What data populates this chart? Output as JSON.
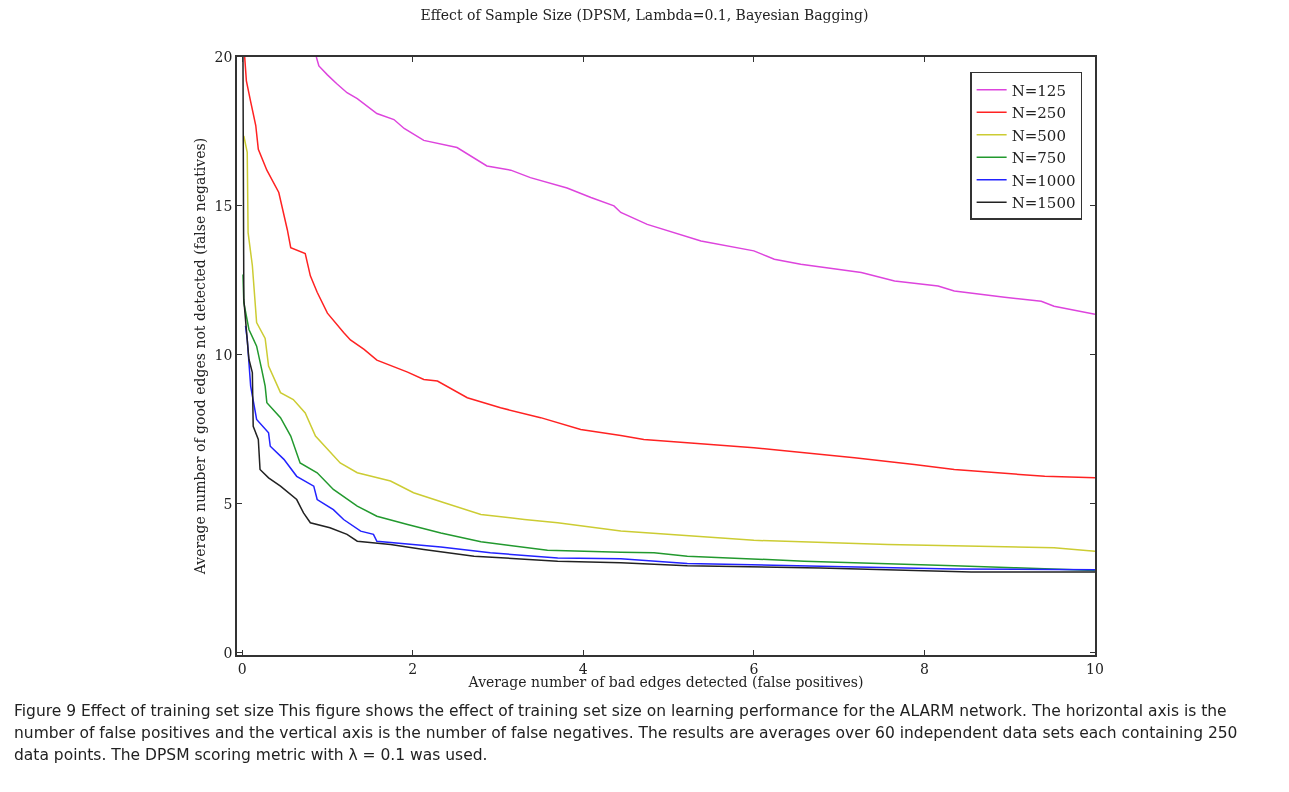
{
  "chart_data": {
    "type": "line",
    "title": "Effect of Sample Size (DPSM, Lambda=0.1, Bayesian Bagging)",
    "xlabel": "Average number of bad edges detected (false positives)",
    "ylabel": "Average number of good edges not detected (false negatives)",
    "xlim": [
      -0.06,
      10
    ],
    "ylim": [
      -0.08,
      20
    ],
    "xticks": [
      0,
      2,
      4,
      6,
      8,
      10
    ],
    "yticks": [
      0,
      5,
      10,
      15,
      20
    ],
    "grid": false,
    "legend": "top right",
    "marker": "none",
    "line_style": "solid",
    "series": [
      {
        "name": "N=125",
        "color": "#dd44dd",
        "x": [
          0.87,
          0.9,
          1.0,
          1.11,
          1.23,
          1.35,
          1.58,
          1.78,
          1.9,
          2.13,
          2.52,
          2.87,
          3.15,
          3.38,
          3.81,
          4.09,
          4.36,
          4.44,
          4.75,
          5.38,
          6.0,
          6.24,
          6.55,
          7.26,
          7.65,
          8.16,
          8.35,
          8.94,
          9.37,
          9.52,
          10
        ],
        "values": [
          20,
          19.7,
          19.4,
          19.1,
          18.8,
          18.6,
          18.1,
          17.9,
          17.6,
          17.2,
          16.96,
          16.34,
          16.2,
          15.95,
          15.6,
          15.28,
          15.0,
          14.78,
          14.38,
          13.82,
          13.49,
          13.21,
          13.04,
          12.76,
          12.48,
          12.31,
          12.14,
          11.93,
          11.8,
          11.63,
          11.36
        ]
      },
      {
        "name": "N=250",
        "color": "#ff2222",
        "x": [
          0.03,
          0.05,
          0.1,
          0.16,
          0.19,
          0.29,
          0.43,
          0.53,
          0.57,
          0.74,
          0.8,
          0.88,
          1.0,
          1.19,
          1.27,
          1.43,
          1.58,
          1.94,
          2.13,
          2.29,
          2.64,
          3.03,
          3.5,
          3.97,
          4.44,
          4.71,
          5.22,
          6.0,
          7.18,
          7.88,
          8.35,
          9.41,
          10
        ],
        "values": [
          20,
          19.2,
          18.5,
          17.7,
          16.9,
          16.2,
          15.45,
          14.2,
          13.6,
          13.4,
          12.65,
          12.1,
          11.4,
          10.75,
          10.5,
          10.18,
          9.82,
          9.42,
          9.17,
          9.12,
          8.56,
          8.22,
          7.89,
          7.49,
          7.29,
          7.16,
          7.05,
          6.88,
          6.54,
          6.32,
          6.15,
          5.92,
          5.87
        ]
      },
      {
        "name": "N=500",
        "color": "#cccc33",
        "x": [
          0.02,
          0.06,
          0.07,
          0.12,
          0.17,
          0.27,
          0.31,
          0.45,
          0.6,
          0.74,
          0.86,
          1.15,
          1.35,
          1.74,
          2.01,
          2.37,
          2.8,
          3.31,
          3.7,
          4.44,
          6.0,
          7.57,
          9.52,
          10
        ],
        "values": [
          17.35,
          16.8,
          14.1,
          13.0,
          11.08,
          10.55,
          9.62,
          8.73,
          8.5,
          8.05,
          7.27,
          6.37,
          6.04,
          5.76,
          5.37,
          5.03,
          4.64,
          4.47,
          4.36,
          4.08,
          3.77,
          3.63,
          3.52,
          3.4
        ]
      },
      {
        "name": "N=750",
        "color": "#22992e",
        "x": [
          0.01,
          0.02,
          0.08,
          0.17,
          0.23,
          0.27,
          0.29,
          0.45,
          0.57,
          0.68,
          0.88,
          1.07,
          1.35,
          1.58,
          1.94,
          2.33,
          2.8,
          3.58,
          4.44,
          4.83,
          5.22,
          6.59,
          8.35,
          9.05,
          10
        ],
        "values": [
          12.7,
          11.75,
          10.85,
          10.29,
          9.5,
          8.95,
          8.39,
          7.89,
          7.27,
          6.37,
          6.04,
          5.48,
          4.92,
          4.58,
          4.3,
          4.02,
          3.72,
          3.44,
          3.37,
          3.35,
          3.24,
          3.07,
          2.92,
          2.85,
          2.76
        ]
      },
      {
        "name": "N=1000",
        "color": "#2222ff",
        "x": [
          0.04,
          0.06,
          0.1,
          0.17,
          0.31,
          0.33,
          0.49,
          0.64,
          0.84,
          0.88,
          1.07,
          1.19,
          1.39,
          1.54,
          1.58,
          2.33,
          2.91,
          3.7,
          4.44,
          5.22,
          6.78,
          8.35,
          10
        ],
        "values": [
          10.97,
          10.52,
          8.95,
          7.83,
          7.38,
          6.93,
          6.49,
          5.92,
          5.59,
          5.14,
          4.8,
          4.47,
          4.08,
          3.97,
          3.74,
          3.55,
          3.35,
          3.18,
          3.15,
          2.99,
          2.9,
          2.81,
          2.78
        ]
      },
      {
        "name": "N=1500",
        "color": "#222222",
        "x": [
          0.01,
          0.02,
          0.06,
          0.08,
          0.12,
          0.13,
          0.19,
          0.21,
          0.31,
          0.45,
          0.64,
          0.72,
          0.8,
          1.03,
          1.23,
          1.35,
          1.74,
          2.13,
          2.72,
          3.7,
          4.44,
          5.22,
          6.78,
          8.55,
          10
        ],
        "values": [
          20,
          11.86,
          10.5,
          9.85,
          9.4,
          7.6,
          7.16,
          6.15,
          5.87,
          5.59,
          5.14,
          4.69,
          4.36,
          4.19,
          3.97,
          3.74,
          3.63,
          3.46,
          3.24,
          3.07,
          3.02,
          2.92,
          2.84,
          2.71,
          2.71
        ]
      }
    ],
    "annotations": [
      "Figure 9 Effect of training set size This figure shows the effect of training set size on learning performance for the ALARM network. The horizontal axis is the number of false positives and the vertical axis is the number of false negatives. The results are averages over 60 independent data sets each containing 250 data points. The DPSM scoring metric with λ = 0.1 was used."
    ]
  }
}
